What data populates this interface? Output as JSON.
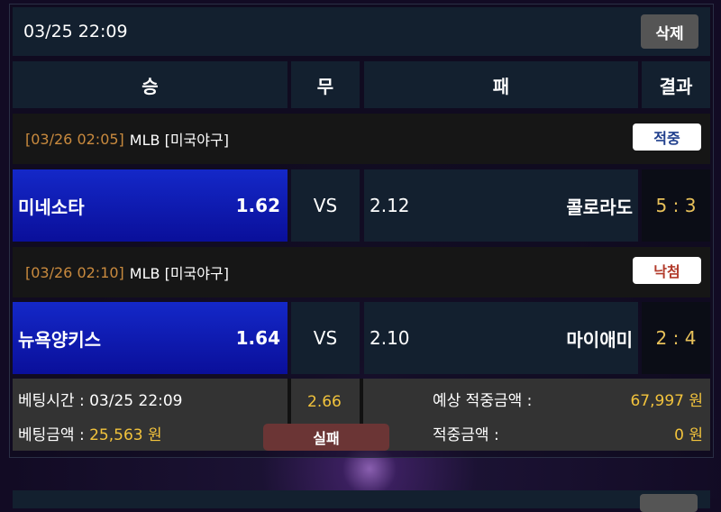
{
  "bet": {
    "datetime": "03/25 22:09",
    "delete_label": "삭제"
  },
  "columns": {
    "win": "승",
    "draw": "무",
    "lose": "패",
    "result": "결과"
  },
  "games": [
    {
      "time": "[03/26 02:05]",
      "league": "MLB [미국야구]",
      "status": "적중",
      "status_color": "#1f3e8c",
      "home": "미네소타",
      "home_odds": "1.62",
      "vs": "VS",
      "away_odds": "2.12",
      "away": "콜로라도",
      "score": "5 : 3"
    },
    {
      "time": "[03/26 02:10]",
      "league": "MLB [미국야구]",
      "status": "낙첨",
      "status_color": "#b23a2a",
      "home": "뉴욕양키스",
      "home_odds": "1.64",
      "vs": "VS",
      "away_odds": "2.10",
      "away": "마이애미",
      "score": "2 : 4"
    }
  ],
  "summary": {
    "bet_time_label": "베팅시간 :",
    "bet_time": "03/25 22:09",
    "bet_amount_label": "베팅금액 :",
    "bet_amount": "25,563 원",
    "total_odds": "2.66",
    "result": "실패",
    "expected_label": "예상 적중금액 :",
    "expected": "67,997 원",
    "won_label": "적중금액 :",
    "won": "0 원"
  }
}
